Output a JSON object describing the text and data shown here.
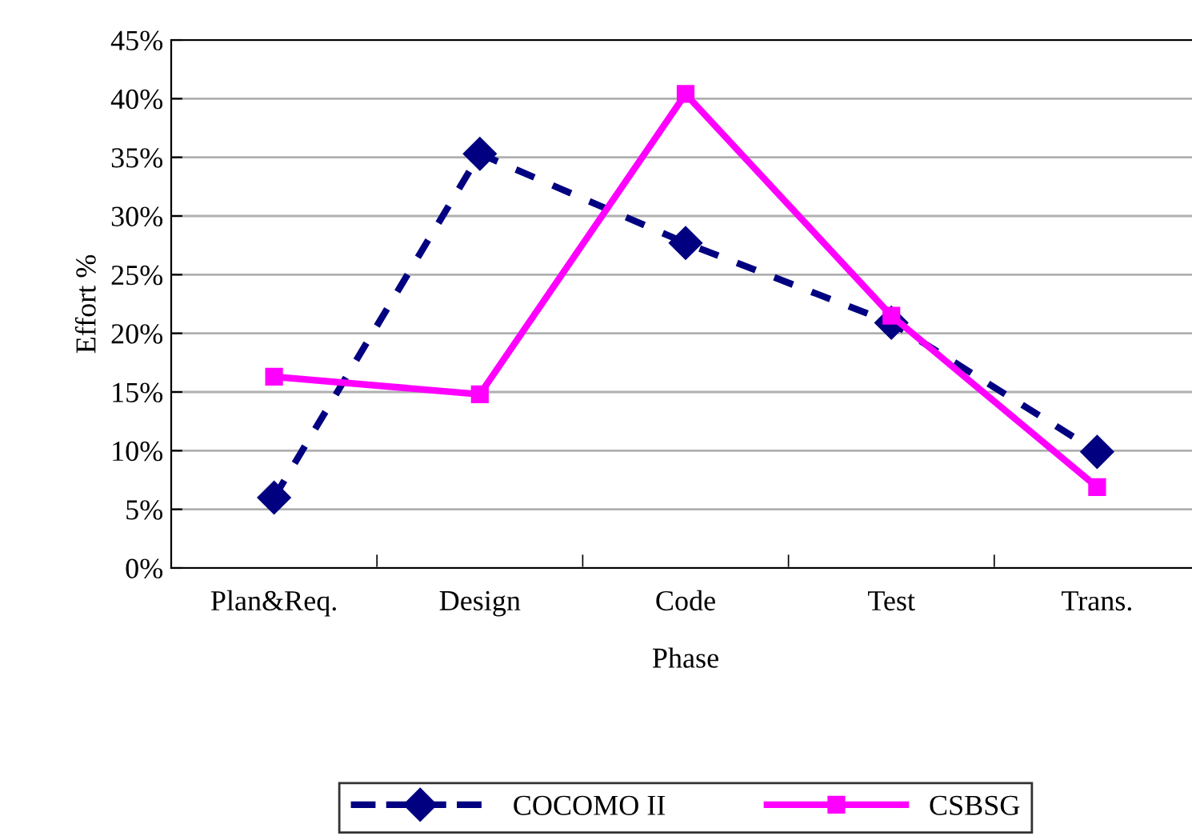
{
  "chart_data": {
    "type": "line",
    "xlabel": "Phase",
    "ylabel": "Effort %",
    "categories": [
      "Plan&Req.",
      "Design",
      "Code",
      "Test",
      "Trans."
    ],
    "series": [
      {
        "name": "COCOMO II",
        "color": "#000080",
        "values": [
          6.0,
          35.3,
          27.7,
          20.9,
          9.9
        ],
        "marker": "diamond",
        "line_style": "dashed"
      },
      {
        "name": "CSBSG",
        "color": "#ff00ff",
        "values": [
          16.3,
          14.8,
          40.4,
          21.5,
          6.9
        ],
        "marker": "square",
        "line_style": "solid"
      }
    ],
    "ylim": [
      0,
      45
    ],
    "yticks": [
      {
        "value": 0,
        "label": "0%"
      },
      {
        "value": 5,
        "label": "5%"
      },
      {
        "value": 10,
        "label": "10%"
      },
      {
        "value": 15,
        "label": "15%"
      },
      {
        "value": 20,
        "label": "20%"
      },
      {
        "value": 25,
        "label": "25%"
      },
      {
        "value": 30,
        "label": "30%"
      },
      {
        "value": 35,
        "label": "35%"
      },
      {
        "value": 40,
        "label": "40%"
      },
      {
        "value": 45,
        "label": "45%"
      }
    ],
    "grid": "y",
    "legend": "bottom"
  }
}
